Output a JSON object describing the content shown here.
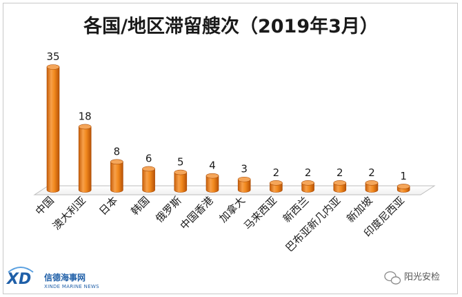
{
  "chart_data": {
    "type": "bar",
    "title": "各国/地区滞留艘次（2019年3月）",
    "categories": [
      "中国",
      "澳大利亚",
      "日本",
      "韩国",
      "俄罗斯",
      "中国香港",
      "加拿大",
      "马来西亚",
      "新西兰",
      "巴布亚新几内亚",
      "新加坡",
      "印度尼西亚"
    ],
    "values": [
      35,
      18,
      8,
      6,
      5,
      4,
      3,
      2,
      2,
      2,
      2,
      1
    ],
    "data_labels": [
      "35",
      "18",
      "8",
      "6",
      "5",
      "4",
      "3",
      "2",
      "2",
      "2",
      "2",
      "1"
    ],
    "ylim": [
      0,
      35
    ],
    "xlabel": "",
    "ylabel": "",
    "grid": false,
    "bar_color": "#f28a1e",
    "bar_style": "3d-cylinder"
  },
  "logo": {
    "mark": "XD",
    "name": "信德海事网",
    "subtitle": "XINDE MARINE NEWS",
    "color": "#1f5fa8"
  },
  "watermark": {
    "text": "阳光安检",
    "icon": "wechat-icon"
  }
}
